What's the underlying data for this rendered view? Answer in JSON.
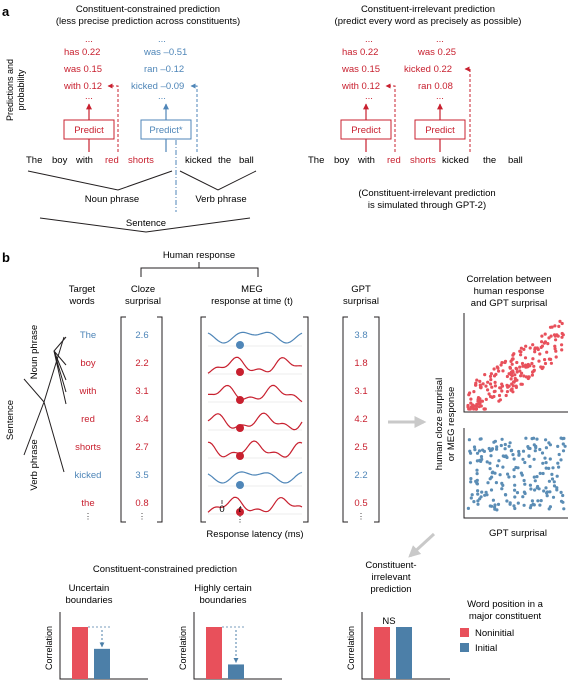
{
  "panel_a": {
    "label": "a",
    "y_axis_label": [
      "Predictions and",
      "probability"
    ],
    "left_title": "Constituent-constrained prediction",
    "left_subtitle": "(less precise prediction across constituents)",
    "right_title": "Constituent-irrelevant prediction",
    "right_subtitle": "(predict every word as precisely as possible)",
    "ellipsis": "...",
    "left_col1": [
      "has 0.22",
      "was 0.15",
      "with 0.12"
    ],
    "left_col2": [
      "was –0.51",
      "ran –0.12",
      "kicked –0.09"
    ],
    "right_col1": [
      "has 0.22",
      "was 0.15",
      "with 0.12"
    ],
    "right_col2": [
      "was 0.25",
      "kicked 0.22",
      "ran 0.08"
    ],
    "predict": "Predict",
    "predict_star": "Predict*",
    "sentence_words": [
      "The",
      "boy",
      "with",
      "red",
      "shorts",
      "kicked",
      "the",
      "ball"
    ],
    "noun_phrase": "Noun phrase",
    "verb_phrase": "Verb phrase",
    "sentence": "Sentence",
    "gpt_note": [
      "(Constituent-irrelevant prediction",
      "is simulated through GPT-2)"
    ]
  },
  "panel_b": {
    "label": "b",
    "human_response": "Human response",
    "target_words_header": [
      "Target",
      "words"
    ],
    "cloze_header": [
      "Cloze",
      "surprisal"
    ],
    "meg_header": [
      "MEG",
      "response at time (t)"
    ],
    "gpt_header": [
      "GPT",
      "surprisal"
    ],
    "target_words": [
      "The",
      "boy",
      "with",
      "red",
      "shorts",
      "kicked",
      "the",
      "⋮"
    ],
    "cloze_values": [
      "2.6",
      "2.2",
      "3.1",
      "3.4",
      "2.7",
      "3.5",
      "0.8",
      "⋮"
    ],
    "gpt_values": [
      "3.8",
      "1.8",
      "3.1",
      "4.2",
      "2.5",
      "2.2",
      "0.5",
      "⋮"
    ],
    "word_types": [
      "initial",
      "noninitial",
      "noninitial",
      "noninitial",
      "noninitial",
      "initial",
      "noninitial"
    ],
    "tree_labels": {
      "sentence": "Sentence",
      "noun_phrase": "Noun phrase",
      "verb_phrase": "Verb phrase"
    },
    "meg_zero": "0",
    "meg_t": "t",
    "latency_label": "Response latency (ms)",
    "corr_title": [
      "Correlation between",
      "human response",
      "and GPT surprisal"
    ],
    "scatter_y_label": [
      "human cloze surprisal",
      "or MEG response"
    ],
    "scatter_x_label": "GPT surprisal",
    "constrained_title": "Constituent-constrained prediction",
    "uncertain_title": [
      "Uncertain",
      "boundaries"
    ],
    "certain_title": [
      "Highly certain",
      "boundaries"
    ],
    "irrelevant_title": [
      "Constituent-",
      "irrelevant",
      "prediction"
    ],
    "correlation_label": "Correlation",
    "ns_label": "NS",
    "legend_title": [
      "Word position in a",
      "major constituent"
    ],
    "legend_items": [
      "Noninitial",
      "Initial"
    ]
  },
  "bar_data": [
    {
      "noninitial": 1.0,
      "initial": 0.58
    },
    {
      "noninitial": 1.0,
      "initial": 0.28
    },
    {
      "noninitial": 1.0,
      "initial": 1.0
    }
  ],
  "colors": {
    "noninitial": "#c8202f",
    "initial": "#4f86b8",
    "bar_noninitial": "#e8505b",
    "bar_initial": "#4c7fa8",
    "text": "#231f20",
    "grey_arrow": "#c9c9c9"
  }
}
